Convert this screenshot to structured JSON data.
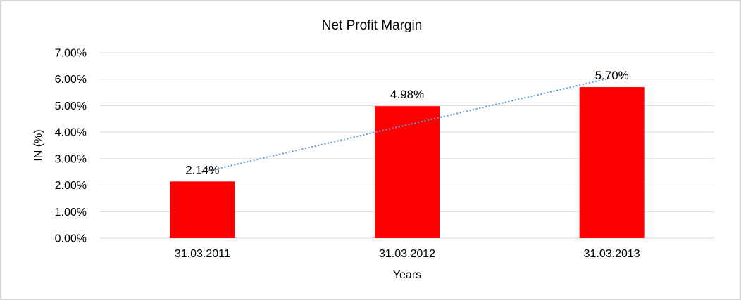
{
  "chart_data": {
    "type": "bar",
    "title": "Net Profit Margin",
    "xlabel": "Years",
    "ylabel": "IN (%)",
    "categories": [
      "31.03.2011",
      "31.03.2012",
      "31.03.2013"
    ],
    "values": [
      2.14,
      4.98,
      5.7
    ],
    "data_labels": [
      "2.14%",
      "4.98%",
      "5.70%"
    ],
    "y_ticks": [
      "0.00%",
      "1.00%",
      "2.00%",
      "3.00%",
      "4.00%",
      "5.00%",
      "6.00%",
      "7.00%"
    ],
    "ylim": [
      0,
      7
    ],
    "grid": true,
    "legend": "none",
    "trendline": {
      "type": "linear",
      "style": "dotted"
    },
    "colors": {
      "bar": "#FF0000",
      "trendline": "#5B9BD5",
      "gridline": "#D9D9D9",
      "text": "#000000",
      "frame_border": "#D9D9D9",
      "background": "#FFFFFF"
    }
  }
}
